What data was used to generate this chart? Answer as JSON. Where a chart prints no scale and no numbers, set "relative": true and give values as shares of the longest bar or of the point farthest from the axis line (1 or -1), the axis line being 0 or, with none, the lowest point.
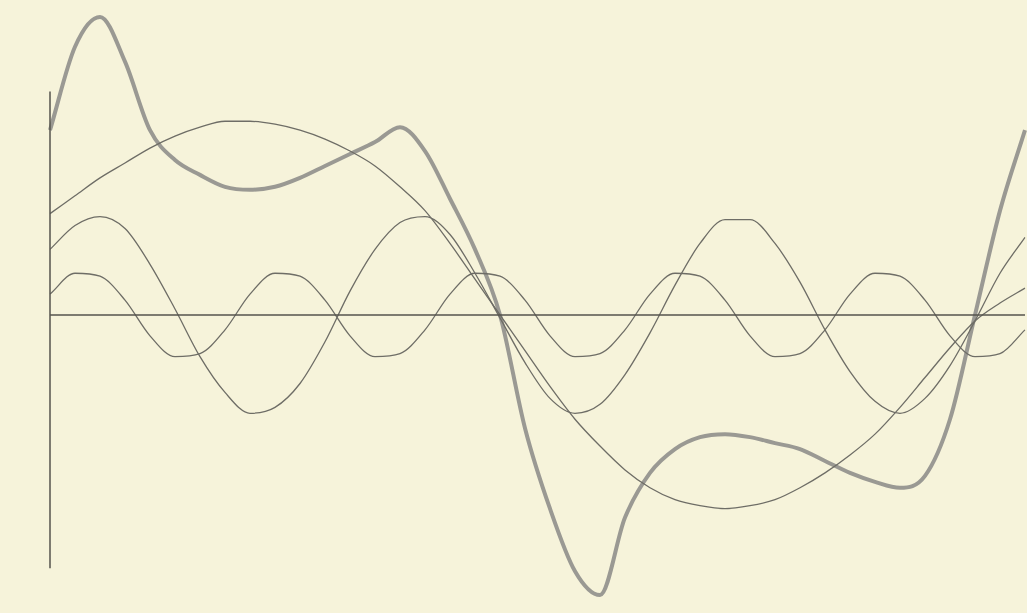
{
  "chart_data": {
    "type": "line",
    "relative": true,
    "marker": "none",
    "line_style": "solid",
    "legend": false,
    "categories": [
      null,
      null,
      null,
      null,
      null,
      null,
      null,
      null,
      null,
      null,
      null,
      null,
      null,
      null,
      null,
      null,
      null,
      null,
      null,
      null,
      null,
      null,
      null,
      null,
      null,
      null,
      null,
      null,
      null,
      null,
      null,
      null,
      null,
      null,
      null,
      null,
      null,
      null,
      null,
      null
    ],
    "series": [
      {
        "color": "#6e6d66",
        "values": [
          0.34,
          0.4,
          0.46,
          0.51,
          0.56,
          0.6,
          0.63,
          0.65,
          0.65,
          0.64,
          0.62,
          0.59,
          0.55,
          0.5,
          0.43,
          0.35,
          0.24,
          0.12,
          0.0,
          -0.12,
          -0.24,
          -0.35,
          -0.44,
          -0.52,
          -0.58,
          -0.62,
          -0.64,
          -0.65,
          -0.64,
          -0.62,
          -0.58,
          -0.53,
          -0.47,
          -0.4,
          -0.31,
          -0.21,
          -0.11,
          -0.02,
          0.04,
          0.09
        ]
      },
      {
        "color": "#6e6d66",
        "values": [
          0.22,
          0.3,
          0.33,
          0.29,
          0.17,
          0.02,
          -0.14,
          -0.26,
          -0.33,
          -0.31,
          -0.23,
          -0.09,
          0.08,
          0.22,
          0.31,
          0.33,
          0.27,
          0.14,
          -0.01,
          -0.16,
          -0.28,
          -0.33,
          -0.3,
          -0.2,
          -0.06,
          0.1,
          0.24,
          0.32,
          0.32,
          0.24,
          0.11,
          -0.05,
          -0.19,
          -0.29,
          -0.33,
          -0.28,
          -0.17,
          -0.02,
          0.14,
          0.26
        ]
      },
      {
        "color": "#6e6d66",
        "values": [
          0.07,
          0.14,
          0.13,
          0.05,
          -0.07,
          -0.14,
          -0.13,
          -0.05,
          0.07,
          0.14,
          0.13,
          0.05,
          -0.07,
          -0.14,
          -0.13,
          -0.05,
          0.07,
          0.14,
          0.13,
          0.05,
          -0.07,
          -0.14,
          -0.13,
          -0.05,
          0.07,
          0.14,
          0.13,
          0.05,
          -0.07,
          -0.14,
          -0.13,
          -0.05,
          0.07,
          0.14,
          0.13,
          0.05,
          -0.07,
          -0.14,
          -0.13,
          -0.05
        ]
      },
      {
        "color": "#9a9993",
        "values": [
          0.62,
          0.9,
          1.0,
          0.85,
          0.62,
          0.52,
          0.47,
          0.43,
          0.42,
          0.43,
          0.46,
          0.5,
          0.54,
          0.58,
          0.63,
          0.55,
          0.39,
          0.22,
          0.0,
          -0.38,
          -0.65,
          -0.86,
          -0.94,
          -0.68,
          -0.53,
          -0.45,
          -0.41,
          -0.4,
          -0.41,
          -0.43,
          -0.45,
          -0.49,
          -0.53,
          -0.56,
          -0.58,
          -0.54,
          -0.35,
          0.0,
          0.35,
          0.62
        ]
      }
    ]
  }
}
